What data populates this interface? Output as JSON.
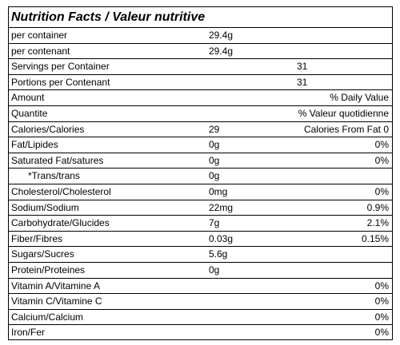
{
  "title": "Nutrition Facts / Valeur nutritive",
  "rows": [
    {
      "label": "per container",
      "amount": "29.4g"
    },
    {
      "label": "per contenant",
      "amount": "29.4g"
    },
    {
      "label": "Servings per Container",
      "count": "31"
    },
    {
      "label": "Portions per Contenant",
      "count": "31"
    },
    {
      "label": "Amount",
      "dv": "% Daily Value"
    },
    {
      "label": "Quantite",
      "dv": "% Valeur quotidienne"
    },
    {
      "label": "Calories/Calories",
      "amount": "29",
      "dv": "Calories From Fat 0"
    },
    {
      "label": "Fat/Lipides",
      "amount": "0g",
      "dv": "0%"
    },
    {
      "label": "Saturated Fat/satures",
      "amount": "0g",
      "dv": "0%"
    },
    {
      "label": "*Trans/trans",
      "amount": "0g",
      "indent": true
    },
    {
      "label": "Cholesterol/Cholesterol",
      "amount": "0mg",
      "dv": "0%"
    },
    {
      "label": "Sodium/Sodium",
      "amount": "22mg",
      "dv": "0.9%"
    },
    {
      "label": "Carbohydrate/Glucides",
      "amount": "7g",
      "dv": "2.1%"
    },
    {
      "label": "Fiber/Fibres",
      "amount": "0.03g",
      "dv": "0.15%"
    },
    {
      "label": "Sugars/Sucres",
      "amount": "5.6g"
    },
    {
      "label": "Protein/Proteines",
      "amount": "0g"
    },
    {
      "label": "Vitamin A/Vitamine A",
      "dv": "0%"
    },
    {
      "label": "Vitamin C/Vitamine C",
      "dv": "0%"
    },
    {
      "label": "Calcium/Calcium",
      "dv": "0%"
    },
    {
      "label": "Iron/Fer",
      "dv": "0%"
    }
  ]
}
